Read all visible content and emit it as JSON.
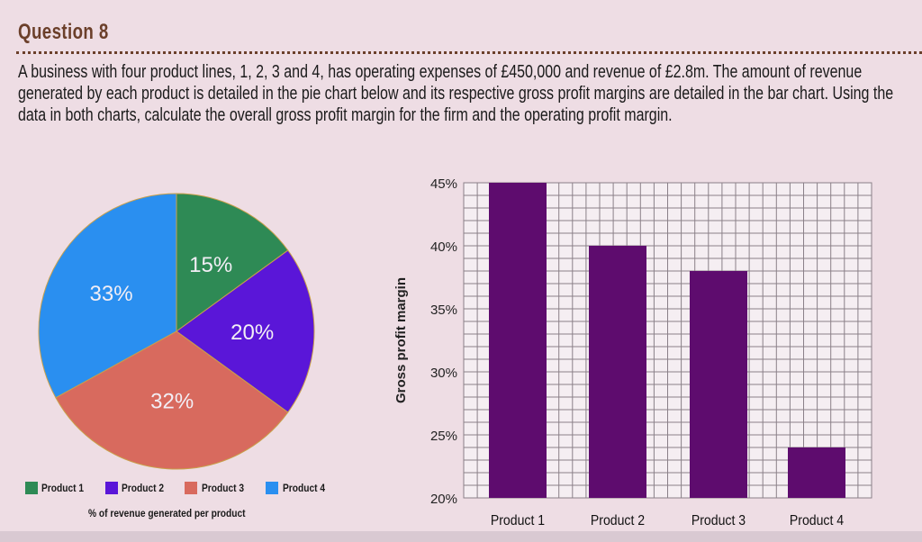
{
  "title": "Question 8",
  "question": "A business with four product lines, 1, 2, 3 and 4, has operating expenses of £450,000 and revenue of £2.8m. The amount of revenue generated by each product is detailed in the pie chart below and its respective gross profit margins are detailed in the bar chart. Using the data in both charts, calculate the overall gross profit margin for the firm and the operating profit margin.",
  "chart_data": [
    {
      "type": "pie",
      "title": "% of revenue generated per product",
      "categories": [
        "Product 1",
        "Product 2",
        "Product 3",
        "Product 4"
      ],
      "values": [
        15,
        20,
        32,
        33
      ],
      "labels": [
        "15%",
        "20%",
        "32%",
        "33%"
      ],
      "colors": [
        "#2e8a55",
        "#5a16d8",
        "#d86a5e",
        "#2a8ff0"
      ],
      "legend": "bottom"
    },
    {
      "type": "bar",
      "categories": [
        "Product 1",
        "Product 2",
        "Product 3",
        "Product 4"
      ],
      "values": [
        45,
        40,
        38,
        24
      ],
      "ylabel": "Gross profit margin",
      "ylim": [
        20,
        45
      ],
      "yticks": [
        "20%",
        "25%",
        "30%",
        "35%",
        "40%",
        "45%"
      ],
      "grid": true,
      "color": "#5e0c6e"
    }
  ]
}
